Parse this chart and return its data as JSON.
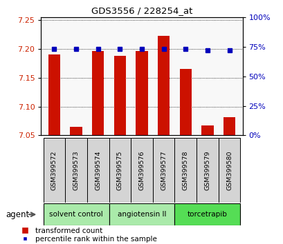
{
  "title": "GDS3556 / 228254_at",
  "samples": [
    "GSM399572",
    "GSM399573",
    "GSM399574",
    "GSM399575",
    "GSM399576",
    "GSM399577",
    "GSM399578",
    "GSM399579",
    "GSM399580"
  ],
  "red_values": [
    7.19,
    7.065,
    7.196,
    7.188,
    7.196,
    7.222,
    7.165,
    7.067,
    7.082
  ],
  "blue_values": [
    73,
    73,
    73,
    73,
    73,
    73,
    73,
    72,
    72
  ],
  "ylim_left": [
    7.05,
    7.255
  ],
  "ylim_right": [
    0,
    100
  ],
  "yticks_left": [
    7.05,
    7.1,
    7.15,
    7.2,
    7.25
  ],
  "yticks_right": [
    0,
    25,
    50,
    75,
    100
  ],
  "groups": [
    {
      "label": "solvent control",
      "start": 0,
      "end": 3,
      "color": "#aaeaaa"
    },
    {
      "label": "angiotensin II",
      "start": 3,
      "end": 6,
      "color": "#aaeaaa"
    },
    {
      "label": "torcetrapib",
      "start": 6,
      "end": 9,
      "color": "#55dd55"
    }
  ],
  "bar_color": "#cc1100",
  "dot_color": "#0000bb",
  "baseline": 7.05,
  "tick_color_left": "#cc2200",
  "tick_color_right": "#0000bb",
  "agent_label": "agent",
  "legend_red": "transformed count",
  "legend_blue": "percentile rank within the sample",
  "bar_width": 0.55,
  "sample_box_color": "#d4d4d4",
  "plot_bg": "#f8f8f8"
}
